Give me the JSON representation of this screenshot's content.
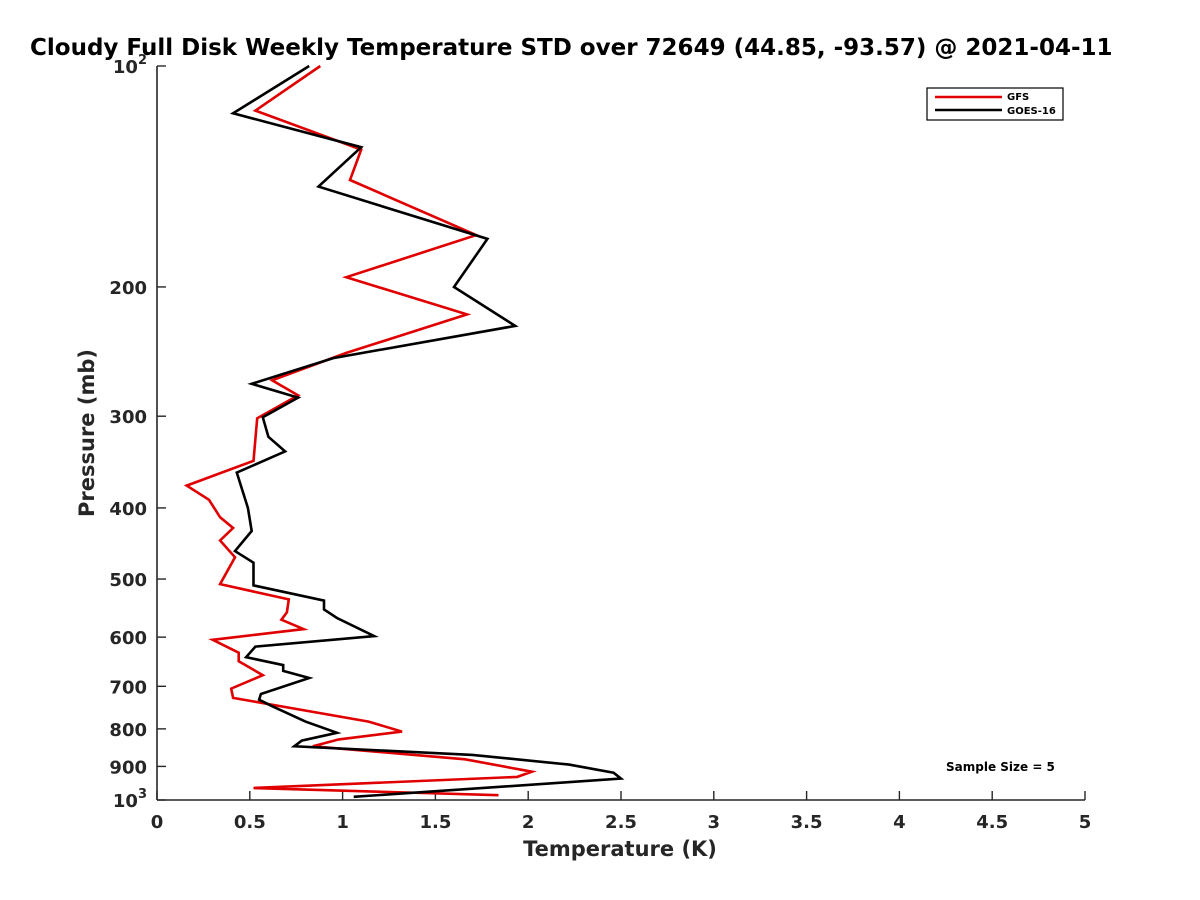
{
  "chart_data": {
    "type": "line",
    "title": "Cloudy Full Disk Weekly Temperature STD over 72649 (44.85, -93.57) @ 2021-04-11",
    "xlabel": "Temperature (K)",
    "ylabel": "Pressure (mb)",
    "xlim": [
      0,
      5
    ],
    "ylim": [
      100,
      1000
    ],
    "y_scale": "log",
    "y_reversed": true,
    "x_ticks": [
      "0",
      "0.5",
      "1",
      "1.5",
      "2",
      "2.5",
      "3",
      "3.5",
      "4",
      "4.5",
      "5"
    ],
    "y_ticks": [
      {
        "value": 100,
        "base": "10",
        "exp": "2"
      },
      {
        "value": 200,
        "label": "200"
      },
      {
        "value": 300,
        "label": "300"
      },
      {
        "value": 400,
        "label": "400"
      },
      {
        "value": 500,
        "label": "500"
      },
      {
        "value": 600,
        "label": "600"
      },
      {
        "value": 700,
        "label": "700"
      },
      {
        "value": 800,
        "label": "800"
      },
      {
        "value": 900,
        "label": "900"
      },
      {
        "value": 1000,
        "base": "10",
        "exp": "3"
      }
    ],
    "legend": {
      "placement": "top-right",
      "entries": [
        "GFS",
        "GOES-16"
      ]
    },
    "annotation": "Sample Size = 5",
    "grid": false,
    "series": [
      {
        "name": "GFS",
        "color": "#e00000",
        "points": [
          [
            0.88,
            100
          ],
          [
            0.53,
            115
          ],
          [
            1.1,
            130
          ],
          [
            1.04,
            143
          ],
          [
            1.72,
            170
          ],
          [
            1.02,
            194
          ],
          [
            1.67,
            218
          ],
          [
            1.02,
            246
          ],
          [
            0.62,
            268
          ],
          [
            0.76,
            281
          ],
          [
            0.54,
            302
          ],
          [
            0.52,
            345
          ],
          [
            0.16,
            373
          ],
          [
            0.28,
            390
          ],
          [
            0.34,
            412
          ],
          [
            0.41,
            426
          ],
          [
            0.34,
            443
          ],
          [
            0.42,
            467
          ],
          [
            0.34,
            508
          ],
          [
            0.71,
            533
          ],
          [
            0.7,
            555
          ],
          [
            0.67,
            568
          ],
          [
            0.79,
            585
          ],
          [
            0.3,
            605
          ],
          [
            0.44,
            630
          ],
          [
            0.44,
            647
          ],
          [
            0.57,
            676
          ],
          [
            0.4,
            705
          ],
          [
            0.41,
            726
          ],
          [
            1.14,
            782
          ],
          [
            1.32,
            807
          ],
          [
            0.98,
            827
          ],
          [
            0.84,
            845
          ],
          [
            1.66,
            880
          ],
          [
            2.02,
            915
          ],
          [
            1.94,
            930
          ],
          [
            0.52,
            963
          ],
          [
            1.84,
            985
          ]
        ]
      },
      {
        "name": "GOES-16",
        "color": "#000000",
        "points": [
          [
            0.82,
            100
          ],
          [
            0.41,
            116
          ],
          [
            1.1,
            129
          ],
          [
            0.87,
            146
          ],
          [
            1.78,
            172
          ],
          [
            1.6,
            200
          ],
          [
            1.93,
            226
          ],
          [
            0.95,
            250
          ],
          [
            0.51,
            271
          ],
          [
            0.76,
            283
          ],
          [
            0.57,
            301
          ],
          [
            0.6,
            320
          ],
          [
            0.69,
            335
          ],
          [
            0.43,
            358
          ],
          [
            0.49,
            400
          ],
          [
            0.51,
            430
          ],
          [
            0.42,
            458
          ],
          [
            0.52,
            475
          ],
          [
            0.52,
            510
          ],
          [
            0.9,
            535
          ],
          [
            0.9,
            550
          ],
          [
            0.97,
            565
          ],
          [
            1.17,
            598
          ],
          [
            0.53,
            618
          ],
          [
            0.48,
            639
          ],
          [
            0.68,
            655
          ],
          [
            0.68,
            667
          ],
          [
            0.82,
            682
          ],
          [
            0.56,
            717
          ],
          [
            0.55,
            730
          ],
          [
            0.62,
            745
          ],
          [
            0.8,
            782
          ],
          [
            0.97,
            810
          ],
          [
            0.78,
            830
          ],
          [
            0.74,
            845
          ],
          [
            1.7,
            868
          ],
          [
            2.22,
            895
          ],
          [
            2.46,
            918
          ],
          [
            2.5,
            935
          ],
          [
            1.06,
            990
          ]
        ]
      }
    ]
  }
}
